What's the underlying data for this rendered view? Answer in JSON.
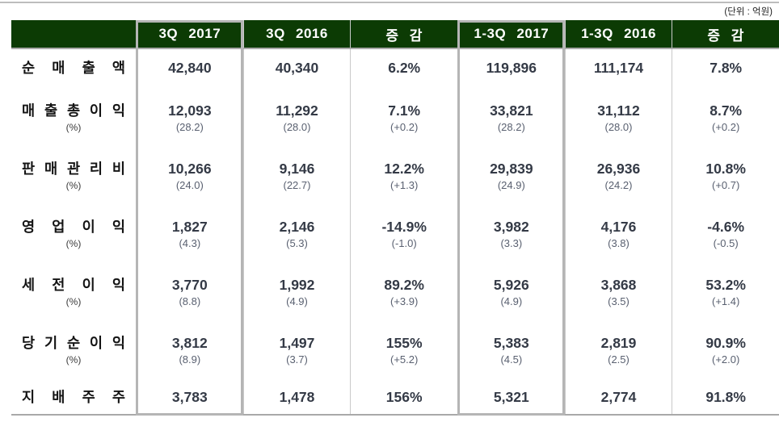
{
  "unit_note": "(단위 : 억원)",
  "colors": {
    "header_bg": "#0c3b04",
    "header_text": "#ffffff",
    "value_text": "#343a46",
    "sub_text": "#596070",
    "grid_line": "#c9c9c9",
    "heavy_rule": "#a9a9a9",
    "highlight_border": "#b5b5b5"
  },
  "table": {
    "columns": [
      "",
      "3Q 2017",
      "3Q 2016",
      "증 감",
      "1-3Q 2017",
      "1-3Q 2016",
      "증 감"
    ],
    "highlighted_columns": [
      "3Q 2017",
      "1-3Q 2017"
    ],
    "rows": [
      {
        "label": "순 매 출 액",
        "sub_label": "",
        "values": [
          "42,840",
          "40,340",
          "6.2%",
          "119,896",
          "111,174",
          "7.8%"
        ],
        "sub_values": []
      },
      {
        "label": "매 출 총 이 익",
        "sub_label": "(%)",
        "values": [
          "12,093",
          "11,292",
          "7.1%",
          "33,821",
          "31,112",
          "8.7%"
        ],
        "sub_values": [
          "(28.2)",
          "(28.0)",
          "(+0.2)",
          "(28.2)",
          "(28.0)",
          "(+0.2)"
        ]
      },
      {
        "label": "판 매 관 리 비",
        "sub_label": "(%)",
        "values": [
          "10,266",
          "9,146",
          "12.2%",
          "29,839",
          "26,936",
          "10.8%"
        ],
        "sub_values": [
          "(24.0)",
          "(22.7)",
          "(+1.3)",
          "(24.9)",
          "(24.2)",
          "(+0.7)"
        ]
      },
      {
        "label": "영 업 이 익",
        "sub_label": "(%)",
        "values": [
          "1,827",
          "2,146",
          "-14.9%",
          "3,982",
          "4,176",
          "-4.6%"
        ],
        "sub_values": [
          "(4.3)",
          "(5.3)",
          "(-1.0)",
          "(3.3)",
          "(3.8)",
          "(-0.5)"
        ]
      },
      {
        "label": "세 전 이 익",
        "sub_label": "(%)",
        "values": [
          "3,770",
          "1,992",
          "89.2%",
          "5,926",
          "3,868",
          "53.2%"
        ],
        "sub_values": [
          "(8.8)",
          "(4.9)",
          "(+3.9)",
          "(4.9)",
          "(3.5)",
          "(+1.4)"
        ]
      },
      {
        "label": "당 기 순 이 익",
        "sub_label": "(%)",
        "values": [
          "3,812",
          "1,497",
          "155%",
          "5,383",
          "2,819",
          "90.9%"
        ],
        "sub_values": [
          "(8.9)",
          "(3.7)",
          "(+5.2)",
          "(4.5)",
          "(2.5)",
          "(+2.0)"
        ]
      },
      {
        "label": "지 배 주 주",
        "sub_label": "",
        "values": [
          "3,783",
          "1,478",
          "156%",
          "5,321",
          "2,774",
          "91.8%"
        ],
        "sub_values": []
      }
    ]
  }
}
